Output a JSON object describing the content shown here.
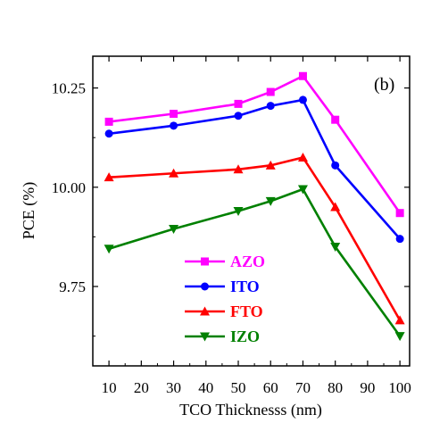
{
  "chart_data": {
    "type": "line",
    "panel_label": "(b)",
    "xlabel": "TCO Thicknesss (nm)",
    "ylabel": "PCE (%)",
    "xlim": [
      5,
      103
    ],
    "ylim": [
      9.55,
      10.33
    ],
    "x_ticks": [
      10,
      20,
      30,
      40,
      50,
      60,
      70,
      80,
      90,
      100
    ],
    "y_ticks": [
      9.75,
      10.0,
      10.25
    ],
    "y_tick_labels": [
      "9.75",
      "10.00",
      "10.25"
    ],
    "grid": false,
    "legend_position": "lower-center",
    "x": [
      10,
      30,
      50,
      60,
      70,
      80,
      100
    ],
    "series": [
      {
        "name": "AZO",
        "color": "#ff00ff",
        "marker": "square",
        "values": [
          10.165,
          10.185,
          10.21,
          10.24,
          10.28,
          10.17,
          9.935
        ]
      },
      {
        "name": "ITO",
        "color": "#0000ff",
        "marker": "circle",
        "values": [
          10.135,
          10.155,
          10.18,
          10.205,
          10.22,
          10.055,
          9.87
        ]
      },
      {
        "name": "FTO",
        "color": "#ff0000",
        "marker": "triangle-up",
        "values": [
          10.025,
          10.035,
          10.045,
          10.055,
          10.075,
          9.95,
          9.665
        ]
      },
      {
        "name": "IZO",
        "color": "#008000",
        "marker": "triangle-down",
        "values": [
          9.845,
          9.895,
          9.94,
          9.965,
          9.995,
          9.85,
          9.625
        ]
      }
    ]
  }
}
